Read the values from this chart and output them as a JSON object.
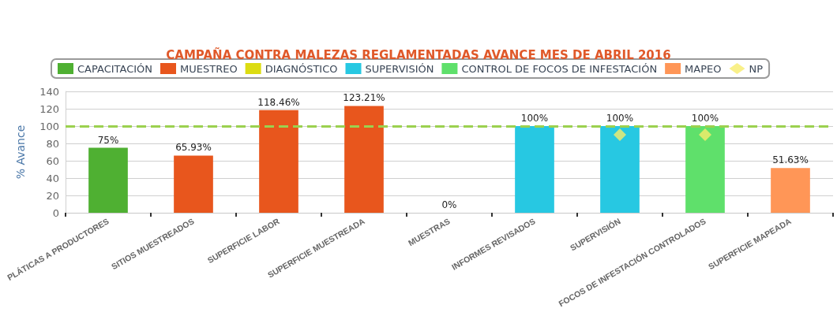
{
  "chart_data": {
    "type": "bar",
    "title": "CAMPAÑA CONTRA MALEZAS REGLAMENTADAS AVANCE MES DE ABRIL 2016",
    "ylabel": "% Avance",
    "categories": [
      "PLÁTICAS A PRODUCTORES",
      "SITIOS MUESTREADOS",
      "SUPERFICIE LABOR",
      "SUPERFICIE MUESTREADA",
      "MUESTRAS",
      "INFORMES REVISADOS",
      "SUPERVISIÓN",
      "FOCOS DE INFESTACIÓN CONTROLADOS",
      "SUPERFICIE MAPEADA"
    ],
    "series": [
      {
        "name": "CAPACITACIÓN",
        "color": "#4fb032",
        "values": [
          75,
          null,
          null,
          null,
          null,
          null,
          null,
          null,
          null
        ],
        "value_labels": [
          "75%",
          null,
          null,
          null,
          null,
          null,
          null,
          null,
          null
        ]
      },
      {
        "name": "MUESTREO",
        "color": "#e8561d",
        "values": [
          null,
          65.93,
          118.46,
          123.21,
          null,
          null,
          null,
          null,
          null
        ],
        "value_labels": [
          null,
          "65.93%",
          "118.46%",
          "123.21%",
          null,
          null,
          null,
          null,
          null
        ]
      },
      {
        "name": "DIAGNÓSTICO",
        "color": "#dcdc12",
        "values": [
          null,
          null,
          null,
          null,
          0,
          null,
          null,
          null,
          null
        ],
        "value_labels": [
          null,
          null,
          null,
          null,
          "0%",
          null,
          null,
          null,
          null
        ]
      },
      {
        "name": "SUPERVISIÓN",
        "color": "#27c8e2",
        "values": [
          null,
          null,
          null,
          null,
          null,
          100,
          100,
          null,
          null
        ],
        "value_labels": [
          null,
          null,
          null,
          null,
          null,
          "100%",
          "100%",
          null,
          null
        ]
      },
      {
        "name": "CONTROL DE FOCOS DE INFESTACIÓN",
        "color": "#5fe06b",
        "values": [
          null,
          null,
          null,
          null,
          null,
          null,
          null,
          100,
          null
        ],
        "value_labels": [
          null,
          null,
          null,
          null,
          null,
          null,
          null,
          "100%",
          null
        ]
      },
      {
        "name": "MAPEO",
        "color": "#ff9657",
        "values": [
          null,
          null,
          null,
          null,
          null,
          null,
          null,
          null,
          51.63
        ],
        "value_labels": [
          null,
          null,
          null,
          null,
          null,
          null,
          null,
          null,
          "51.63%"
        ]
      },
      {
        "name": "NP",
        "type": "scatter",
        "marker": "diamond",
        "color": "#f8ec6c",
        "values": [
          null,
          null,
          null,
          null,
          null,
          null,
          90,
          90,
          null
        ]
      }
    ],
    "ylim": [
      0,
      140
    ],
    "yticks": [
      0,
      20,
      40,
      60,
      80,
      100,
      120,
      140
    ],
    "grid": "y",
    "legend": "top left",
    "ref_lines": [
      {
        "axis": "y",
        "value": 100,
        "color": "#9bd14f",
        "line_style": "dashed"
      }
    ]
  }
}
